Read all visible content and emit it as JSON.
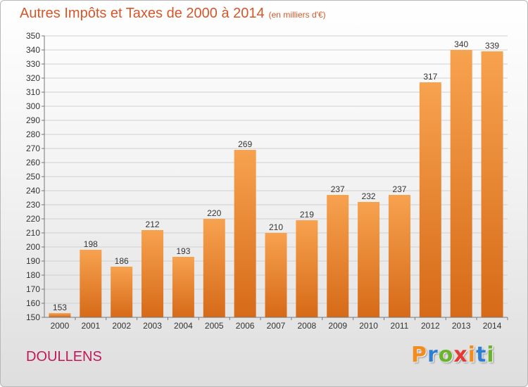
{
  "header": {
    "title": "Autres Impôts et Taxes de 2000 à 2014",
    "subtitle": "(en milliers d'€)"
  },
  "footer": {
    "city": "DOULLENS",
    "logo_text": "Proxiti",
    "logo_colors": [
      "#f28c1e",
      "#2e7fd1",
      "#6ab42d",
      "#e53935",
      "#f28c1e",
      "#2e7fd1",
      "#6ab42d"
    ]
  },
  "colors": {
    "title": "#d4572a",
    "city": "#c2185b",
    "bar_top": "#f7a24f",
    "bar_bottom": "#d66a18",
    "grid": "#d0d0d0",
    "axis_text": "#333333"
  },
  "chart_data": {
    "type": "bar",
    "title": "Autres Impôts et Taxes de 2000 à 2014",
    "subtitle": "(en milliers d'€)",
    "categories": [
      "2000",
      "2001",
      "2002",
      "2003",
      "2004",
      "2005",
      "2006",
      "2007",
      "2008",
      "2009",
      "2010",
      "2011",
      "2012",
      "2013",
      "2014"
    ],
    "values": [
      153,
      198,
      186,
      212,
      193,
      220,
      269,
      210,
      219,
      237,
      232,
      237,
      317,
      340,
      339
    ],
    "data_labels": [
      "153",
      "198",
      "186",
      "212",
      "193",
      "220",
      "269",
      "210",
      "219",
      "237",
      "232",
      "237",
      "317",
      "340",
      "339"
    ],
    "ylim": [
      150,
      350
    ],
    "yticks": [
      "150",
      "160",
      "170",
      "180",
      "190",
      "200",
      "210",
      "220",
      "230",
      "240",
      "250",
      "260",
      "270",
      "280",
      "290",
      "300",
      "310",
      "320",
      "330",
      "340",
      "350"
    ],
    "grid": true,
    "legend": "none"
  }
}
